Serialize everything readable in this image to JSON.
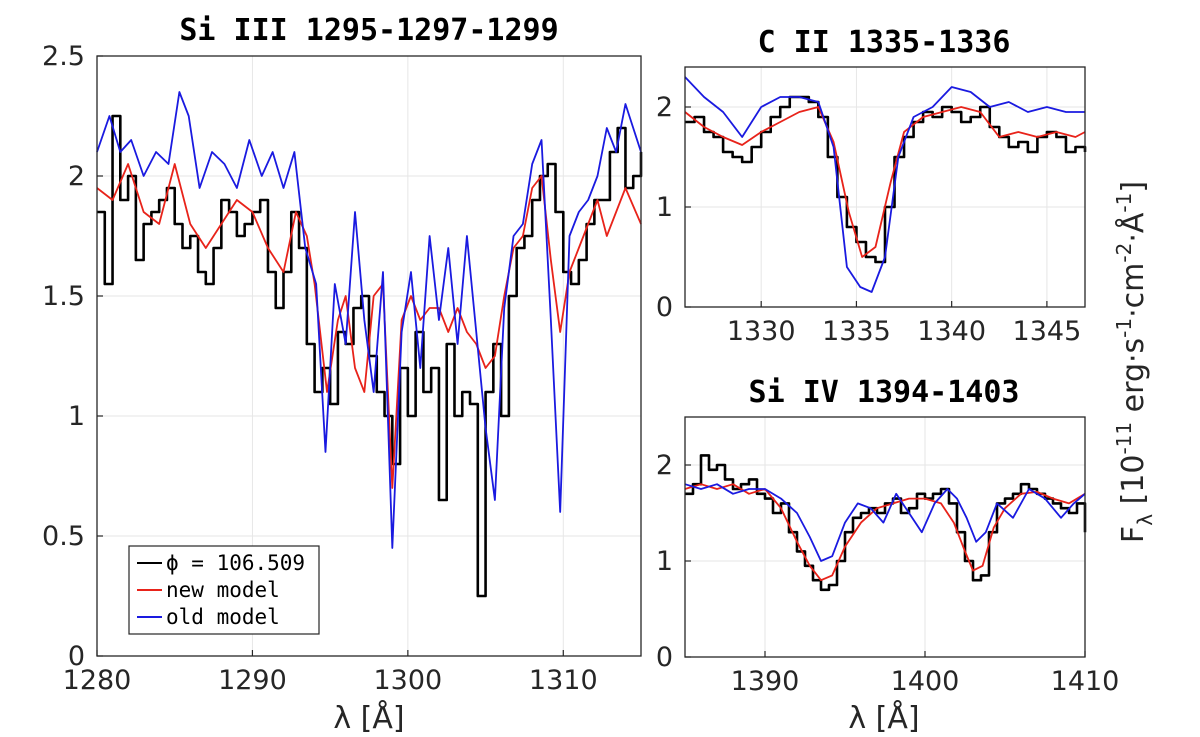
{
  "figure": {
    "xlabel": "λ [Å]",
    "ylabel_right": "F_λ [10^-11 erg·s^-1·cm^-2·Å^-1]",
    "legend": {
      "items": [
        {
          "label": "ϕ = 106.509",
          "color": "#000000"
        },
        {
          "label": "new model",
          "color": "#e8231a"
        },
        {
          "label": "old model",
          "color": "#1a1ae0"
        }
      ]
    }
  },
  "chart_data": [
    {
      "type": "line",
      "title": "Si III 1295-1297-1299",
      "xlabel": "λ [Å]",
      "ylabel": "",
      "xlim": [
        1280,
        1315
      ],
      "ylim": [
        0,
        2.5
      ],
      "xticks": [
        "1280",
        "1290",
        "1300",
        "1310"
      ],
      "yticks": [
        "0",
        "0.5",
        "1",
        "1.5",
        "2",
        "2.5"
      ],
      "grid": true,
      "legend_position": "bottom-left",
      "series": [
        {
          "name": "ϕ = 106.509",
          "color": "#000000",
          "style": "step",
          "x": [
            1280.0,
            1280.5,
            1281.0,
            1281.5,
            1282.0,
            1282.5,
            1283.0,
            1283.5,
            1284.0,
            1284.5,
            1285.0,
            1285.5,
            1286.0,
            1286.5,
            1287.0,
            1287.5,
            1288.0,
            1288.5,
            1289.0,
            1289.5,
            1290.0,
            1290.5,
            1291.0,
            1291.5,
            1292.0,
            1292.5,
            1293.0,
            1293.5,
            1294.0,
            1294.5,
            1295.0,
            1295.5,
            1296.0,
            1296.5,
            1297.0,
            1297.5,
            1298.0,
            1298.5,
            1299.0,
            1299.5,
            1300.0,
            1300.5,
            1301.0,
            1301.5,
            1302.0,
            1302.5,
            1303.0,
            1303.5,
            1304.0,
            1304.5,
            1305.0,
            1305.5,
            1306.0,
            1306.5,
            1307.0,
            1307.5,
            1308.0,
            1308.5,
            1309.0,
            1309.5,
            1310.0,
            1310.5,
            1311.0,
            1311.5,
            1312.0,
            1312.5,
            1313.0,
            1313.5,
            1314.0,
            1314.5,
            1315.0
          ],
          "y": [
            1.85,
            1.55,
            2.25,
            1.9,
            2.0,
            1.65,
            1.8,
            1.85,
            1.9,
            1.95,
            1.8,
            1.7,
            1.75,
            1.6,
            1.55,
            1.7,
            1.9,
            1.85,
            1.75,
            1.8,
            1.85,
            1.9,
            1.6,
            1.45,
            1.6,
            1.85,
            1.7,
            1.3,
            1.1,
            1.2,
            1.05,
            1.35,
            1.3,
            1.45,
            1.5,
            1.25,
            1.1,
            1.0,
            0.8,
            1.2,
            1.0,
            1.35,
            1.1,
            1.2,
            0.65,
            1.3,
            1.0,
            1.1,
            1.05,
            0.25,
            1.1,
            1.3,
            1.0,
            1.5,
            1.7,
            1.75,
            1.9,
            2.0,
            2.05,
            1.85,
            1.6,
            1.55,
            1.65,
            1.8,
            1.9,
            1.9,
            2.1,
            2.2,
            1.95,
            2.0,
            2.1
          ]
        },
        {
          "name": "new model",
          "color": "#e8231a",
          "style": "line",
          "x": [
            1280.0,
            1281.0,
            1282.0,
            1283.0,
            1284.0,
            1285.0,
            1286.0,
            1287.0,
            1288.0,
            1289.0,
            1290.0,
            1291.0,
            1292.0,
            1292.8,
            1293.5,
            1294.0,
            1294.8,
            1295.5,
            1296.0,
            1296.6,
            1297.2,
            1297.8,
            1298.4,
            1299.0,
            1299.6,
            1300.2,
            1300.8,
            1301.4,
            1302.0,
            1302.6,
            1303.2,
            1303.8,
            1304.4,
            1305.0,
            1305.6,
            1306.2,
            1306.8,
            1307.4,
            1308.0,
            1308.6,
            1309.2,
            1309.8,
            1310.4,
            1311.0,
            1311.6,
            1312.2,
            1312.8,
            1313.4,
            1314.0,
            1315.0
          ],
          "y": [
            1.95,
            1.9,
            2.05,
            1.85,
            1.8,
            2.05,
            1.8,
            1.7,
            1.8,
            1.9,
            1.85,
            1.7,
            1.6,
            1.85,
            1.75,
            1.55,
            1.1,
            1.4,
            1.5,
            1.2,
            1.1,
            1.5,
            1.55,
            0.7,
            1.4,
            1.5,
            1.4,
            1.45,
            1.45,
            1.35,
            1.45,
            1.35,
            1.3,
            1.2,
            1.25,
            1.5,
            1.7,
            1.75,
            1.95,
            2.0,
            1.65,
            1.35,
            1.6,
            1.7,
            1.8,
            1.9,
            1.75,
            1.85,
            1.95,
            1.8
          ]
        },
        {
          "name": "old model",
          "color": "#1a1ae0",
          "style": "line",
          "x": [
            1280.0,
            1280.8,
            1281.5,
            1282.2,
            1283.0,
            1283.8,
            1284.6,
            1285.3,
            1285.9,
            1286.6,
            1287.4,
            1288.2,
            1289.0,
            1289.8,
            1290.6,
            1291.3,
            1292.0,
            1292.7,
            1293.4,
            1294.1,
            1294.7,
            1295.3,
            1296.0,
            1296.6,
            1297.2,
            1297.8,
            1298.4,
            1299.0,
            1299.6,
            1300.2,
            1300.8,
            1301.4,
            1302.0,
            1302.6,
            1303.2,
            1303.8,
            1304.4,
            1305.0,
            1305.6,
            1306.2,
            1306.8,
            1307.4,
            1308.0,
            1308.6,
            1309.2,
            1309.8,
            1310.4,
            1311.0,
            1311.6,
            1312.2,
            1312.8,
            1313.4,
            1314.0,
            1314.5,
            1315.0
          ],
          "y": [
            2.1,
            2.25,
            2.1,
            2.15,
            2.0,
            2.1,
            2.05,
            2.35,
            2.25,
            1.95,
            2.1,
            2.05,
            1.95,
            2.15,
            2.0,
            2.1,
            1.95,
            2.1,
            1.7,
            1.55,
            0.85,
            1.55,
            1.3,
            1.85,
            1.4,
            1.1,
            1.6,
            0.45,
            1.35,
            1.6,
            1.2,
            1.75,
            1.4,
            1.7,
            1.3,
            1.75,
            1.35,
            0.95,
            0.65,
            1.45,
            1.75,
            1.8,
            2.05,
            2.15,
            1.4,
            0.6,
            1.75,
            1.85,
            1.9,
            2.0,
            2.2,
            2.1,
            2.3,
            2.2,
            2.1
          ]
        }
      ]
    },
    {
      "type": "line",
      "title": "C II 1335-1336",
      "xlabel": "",
      "ylabel": "",
      "xlim": [
        1326,
        1347
      ],
      "ylim": [
        0,
        2.4
      ],
      "xticks": [
        "1330",
        "1335",
        "1340",
        "1345"
      ],
      "yticks": [
        "0",
        "1",
        "2"
      ],
      "grid": true,
      "series": [
        {
          "name": "ϕ = 106.509",
          "color": "#000000",
          "style": "step",
          "x": [
            1326.0,
            1326.5,
            1327.0,
            1327.5,
            1328.0,
            1328.5,
            1329.0,
            1329.5,
            1330.0,
            1330.5,
            1331.0,
            1331.5,
            1332.0,
            1332.5,
            1333.0,
            1333.5,
            1334.0,
            1334.5,
            1335.0,
            1335.5,
            1336.0,
            1336.5,
            1337.0,
            1337.5,
            1338.0,
            1338.5,
            1339.0,
            1339.5,
            1340.0,
            1340.5,
            1341.0,
            1341.5,
            1342.0,
            1342.5,
            1343.0,
            1343.5,
            1344.0,
            1344.5,
            1345.0,
            1345.5,
            1346.0,
            1346.5,
            1347.0
          ],
          "y": [
            1.85,
            1.9,
            1.75,
            1.7,
            1.55,
            1.5,
            1.45,
            1.6,
            1.75,
            1.9,
            2.0,
            2.1,
            2.1,
            2.05,
            1.9,
            1.5,
            1.1,
            0.8,
            0.65,
            0.5,
            0.45,
            1.0,
            1.5,
            1.7,
            1.85,
            1.95,
            1.9,
            2.0,
            1.95,
            1.85,
            1.9,
            2.0,
            1.8,
            1.7,
            1.6,
            1.65,
            1.55,
            1.7,
            1.75,
            1.7,
            1.55,
            1.6,
            1.55
          ]
        },
        {
          "name": "new model",
          "color": "#e8231a",
          "style": "line",
          "x": [
            1326.0,
            1327.0,
            1328.0,
            1329.0,
            1330.0,
            1331.0,
            1332.0,
            1333.0,
            1333.8,
            1334.6,
            1335.3,
            1336.0,
            1336.8,
            1337.5,
            1338.5,
            1339.5,
            1340.5,
            1341.5,
            1342.5,
            1343.5,
            1344.5,
            1345.5,
            1346.5,
            1347.0
          ],
          "y": [
            1.95,
            1.8,
            1.7,
            1.62,
            1.75,
            1.85,
            1.95,
            2.0,
            1.65,
            0.95,
            0.5,
            0.6,
            1.25,
            1.75,
            1.9,
            1.95,
            2.0,
            1.95,
            1.7,
            1.75,
            1.7,
            1.75,
            1.7,
            1.75
          ]
        },
        {
          "name": "old model",
          "color": "#1a1ae0",
          "style": "line",
          "x": [
            1326.0,
            1327.0,
            1328.0,
            1329.0,
            1330.0,
            1331.0,
            1332.0,
            1333.0,
            1333.8,
            1334.5,
            1335.2,
            1335.8,
            1336.5,
            1337.2,
            1338.0,
            1339.0,
            1340.0,
            1341.0,
            1342.0,
            1343.0,
            1344.0,
            1345.0,
            1346.0,
            1347.0
          ],
          "y": [
            2.3,
            2.1,
            1.95,
            1.7,
            2.0,
            2.1,
            2.1,
            2.05,
            1.6,
            0.4,
            0.2,
            0.15,
            0.5,
            1.5,
            1.9,
            2.0,
            2.2,
            2.15,
            2.0,
            2.05,
            1.95,
            2.0,
            1.95,
            1.95
          ]
        }
      ]
    },
    {
      "type": "line",
      "title": "Si IV 1394-1403",
      "xlabel": "λ [Å]",
      "ylabel": "",
      "xlim": [
        1385,
        1410
      ],
      "ylim": [
        0,
        2.5
      ],
      "xticks": [
        "1390",
        "1400",
        "1410"
      ],
      "yticks": [
        "0",
        "1",
        "2"
      ],
      "grid": true,
      "series": [
        {
          "name": "ϕ = 106.509",
          "color": "#000000",
          "style": "step",
          "x": [
            1385.0,
            1385.5,
            1386.0,
            1386.5,
            1387.0,
            1387.5,
            1388.0,
            1388.5,
            1389.0,
            1389.5,
            1390.0,
            1390.5,
            1391.0,
            1391.5,
            1392.0,
            1392.5,
            1393.0,
            1393.5,
            1394.0,
            1394.5,
            1395.0,
            1395.5,
            1396.0,
            1396.5,
            1397.0,
            1397.5,
            1398.0,
            1398.5,
            1399.0,
            1399.5,
            1400.0,
            1400.5,
            1401.0,
            1401.5,
            1402.0,
            1402.5,
            1403.0,
            1403.5,
            1404.0,
            1404.5,
            1405.0,
            1405.5,
            1406.0,
            1406.5,
            1407.0,
            1407.5,
            1408.0,
            1408.5,
            1409.0,
            1409.5,
            1410.0
          ],
          "y": [
            1.7,
            1.8,
            2.1,
            1.95,
            2.0,
            1.85,
            1.75,
            1.8,
            1.85,
            1.7,
            1.65,
            1.5,
            1.6,
            1.3,
            1.1,
            0.95,
            0.8,
            0.7,
            0.75,
            1.0,
            1.3,
            1.45,
            1.5,
            1.55,
            1.5,
            1.6,
            1.65,
            1.5,
            1.55,
            1.7,
            1.65,
            1.7,
            1.75,
            1.6,
            1.3,
            1.0,
            0.8,
            0.85,
            1.3,
            1.6,
            1.65,
            1.7,
            1.8,
            1.75,
            1.7,
            1.65,
            1.6,
            1.55,
            1.5,
            1.6,
            1.3
          ]
        },
        {
          "name": "new model",
          "color": "#e8231a",
          "style": "line",
          "x": [
            1385.0,
            1386.0,
            1387.0,
            1388.0,
            1389.0,
            1390.0,
            1391.0,
            1392.0,
            1392.8,
            1393.5,
            1394.2,
            1395.0,
            1396.0,
            1397.0,
            1398.0,
            1399.0,
            1400.0,
            1401.0,
            1401.8,
            1402.5,
            1403.0,
            1403.6,
            1404.3,
            1405.0,
            1406.0,
            1407.0,
            1408.0,
            1409.0,
            1410.0
          ],
          "y": [
            1.75,
            1.8,
            1.75,
            1.8,
            1.7,
            1.75,
            1.55,
            1.2,
            0.95,
            0.8,
            0.85,
            1.15,
            1.4,
            1.55,
            1.6,
            1.65,
            1.65,
            1.6,
            1.4,
            1.1,
            0.9,
            0.95,
            1.35,
            1.55,
            1.7,
            1.72,
            1.65,
            1.6,
            1.7
          ]
        },
        {
          "name": "old model",
          "color": "#1a1ae0",
          "style": "line",
          "x": [
            1385.0,
            1386.0,
            1387.0,
            1388.0,
            1389.0,
            1390.0,
            1391.0,
            1392.0,
            1392.8,
            1393.5,
            1394.2,
            1395.0,
            1395.8,
            1396.6,
            1397.4,
            1398.2,
            1399.0,
            1399.8,
            1400.6,
            1401.4,
            1402.0,
            1402.6,
            1403.2,
            1403.8,
            1404.5,
            1405.5,
            1406.5,
            1407.5,
            1408.5,
            1409.3,
            1410.0
          ],
          "y": [
            1.8,
            1.75,
            1.8,
            1.7,
            1.75,
            1.75,
            1.65,
            1.5,
            1.25,
            1.0,
            1.05,
            1.4,
            1.6,
            1.55,
            1.4,
            1.7,
            1.5,
            1.3,
            1.6,
            1.75,
            1.65,
            1.45,
            1.2,
            1.3,
            1.6,
            1.45,
            1.75,
            1.65,
            1.45,
            1.6,
            1.7
          ]
        }
      ]
    }
  ]
}
